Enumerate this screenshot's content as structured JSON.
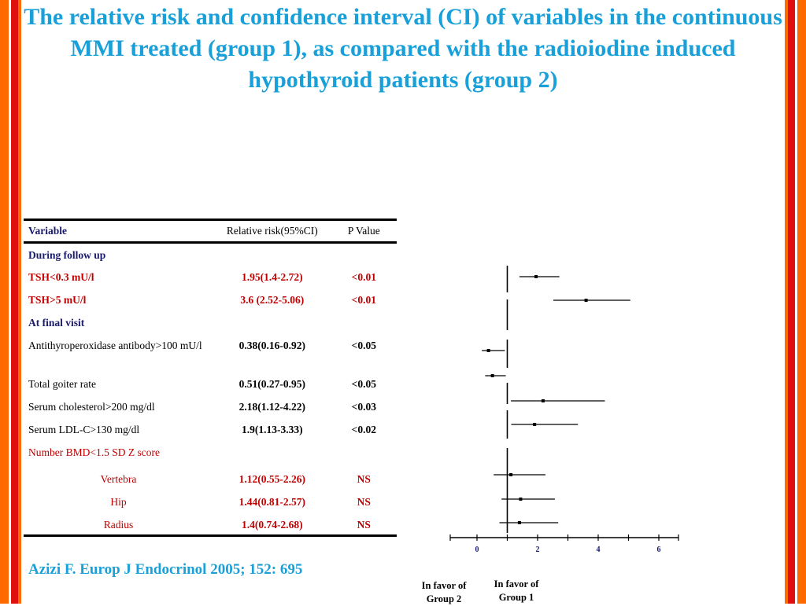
{
  "slide": {
    "title": "The relative risk and confidence interval (CI) of variables in the continuous MMI treated (group 1), as compared with the radioiodine induced hypothyroid patients (group 2)",
    "citation": "Azizi F. Europ J Endocrinol 2005; 152: 695",
    "colors": {
      "title": "#1aa0d8",
      "border_orange": "#ff6a00",
      "border_red": "#e01010",
      "heading_navy": "#1a1a6e",
      "highlight_red": "#c00000"
    }
  },
  "table": {
    "headers": {
      "variable": "Variable",
      "rr": "Relative risk(95%CI)",
      "p": "P Value"
    },
    "section1": "During follow up",
    "section2": "At final visit",
    "rows": [
      {
        "variable": "TSH<0.3 mU/l",
        "rr": "1.95(1.4-2.72)",
        "p": "<0.01"
      },
      {
        "variable": "TSH>5 mU/l",
        "rr": "3.6 (2.52-5.06)",
        "p": "<0.01"
      },
      {
        "variable": "Antithyroperoxidase antibody>100 mU/l",
        "rr": "0.38(0.16-0.92)",
        "p": "<0.05"
      },
      {
        "variable": "Total goiter rate",
        "rr": "0.51(0.27-0.95)",
        "p": "<0.05"
      },
      {
        "variable": "Serum cholesterol>200 mg/dl",
        "rr": "2.18(1.12-4.22)",
        "p": "<0.03"
      },
      {
        "variable": "Serum LDL-C>130 mg/dl",
        "rr": "1.9(1.13-3.33)",
        "p": "<0.02"
      },
      {
        "variable": "Vertebra",
        "rr": "1.12(0.55-2.26)",
        "p": "NS"
      },
      {
        "variable": "Hip",
        "rr": "1.44(0.81-2.57)",
        "p": "NS"
      },
      {
        "variable": "Radius",
        "rr": "1.4(0.74-2.68)",
        "p": "NS"
      }
    ],
    "bmd_group": "Number BMD<1.5 SD Z score"
  },
  "chart_data": {
    "type": "scatter",
    "x_ticks": [
      "0",
      "2",
      "4",
      "6"
    ],
    "xlim": [
      -1,
      6.7
    ],
    "reference_line": 1,
    "rows": [
      {
        "label": "TSH<0.3 mU/l",
        "estimate": 1.95,
        "low": 1.4,
        "high": 2.72
      },
      {
        "label": "TSH>5 mU/l",
        "estimate": 3.6,
        "low": 2.52,
        "high": 5.06
      },
      {
        "label": "Antithyroperoxidase antibody>100 mU/l",
        "estimate": 0.38,
        "low": 0.16,
        "high": 0.92
      },
      {
        "label": "Total goiter rate",
        "estimate": 0.51,
        "low": 0.27,
        "high": 0.95
      },
      {
        "label": "Serum cholesterol>200 mg/dl",
        "estimate": 2.18,
        "low": 1.12,
        "high": 4.22
      },
      {
        "label": "Serum LDL-C>130 mg/dl",
        "estimate": 1.9,
        "low": 1.13,
        "high": 3.33
      },
      {
        "label": "Vertebra",
        "estimate": 1.12,
        "low": 0.55,
        "high": 2.26
      },
      {
        "label": "Hip",
        "estimate": 1.44,
        "low": 0.81,
        "high": 2.57
      },
      {
        "label": "Radius",
        "estimate": 1.4,
        "low": 0.74,
        "high": 2.68
      }
    ],
    "favor_left": "In favor of Group 2",
    "favor_right": "In favor of Group 1"
  }
}
